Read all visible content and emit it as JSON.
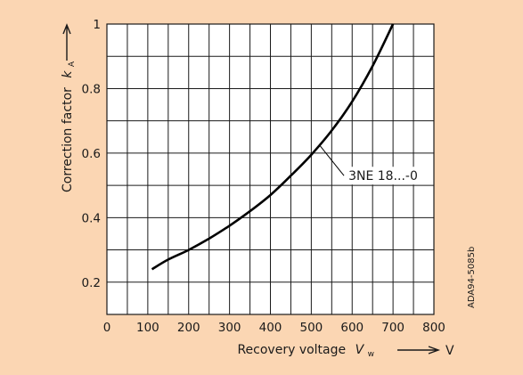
{
  "colors": {
    "panel_bg": "#fbd6b3",
    "plot_bg": "#ffffff",
    "grid": "#1a1a1a",
    "curve": "#000000",
    "text": "#1a1a1a"
  },
  "chart_data": {
    "type": "line",
    "title": "",
    "xlabel": "Recovery voltage",
    "xlabel_symbol": "V",
    "xlabel_subscript": "w",
    "x_unit": "V",
    "ylabel": "Correction factor",
    "ylabel_symbol": "k",
    "ylabel_subscript": "A",
    "xlim": [
      0,
      800
    ],
    "ylim": [
      0.1,
      1.0
    ],
    "x_ticks": [
      0,
      100,
      200,
      300,
      400,
      500,
      600,
      700,
      800
    ],
    "y_ticks": [
      0.2,
      0.4,
      0.6,
      0.8,
      1
    ],
    "x_tick_labels": [
      "0",
      "100",
      "200",
      "300",
      "400",
      "500",
      "600",
      "700",
      "800"
    ],
    "y_tick_labels": [
      "0.2",
      "0.4",
      "0.6",
      "0.8",
      "1"
    ],
    "x_grid_step": 50,
    "y_grid_step": 0.1,
    "grid": true,
    "series": [
      {
        "name": "3NE 18...-0",
        "x": [
          110,
          150,
          200,
          250,
          300,
          350,
          400,
          450,
          500,
          550,
          600,
          650,
          700
        ],
        "y": [
          0.24,
          0.27,
          0.3,
          0.335,
          0.375,
          0.42,
          0.47,
          0.53,
          0.595,
          0.67,
          0.76,
          0.87,
          1.0
        ]
      }
    ],
    "annotations": [
      {
        "text": "3NE 18...-0",
        "x": 520,
        "y": 0.625
      }
    ],
    "side_code": "ADA94-5085b"
  }
}
